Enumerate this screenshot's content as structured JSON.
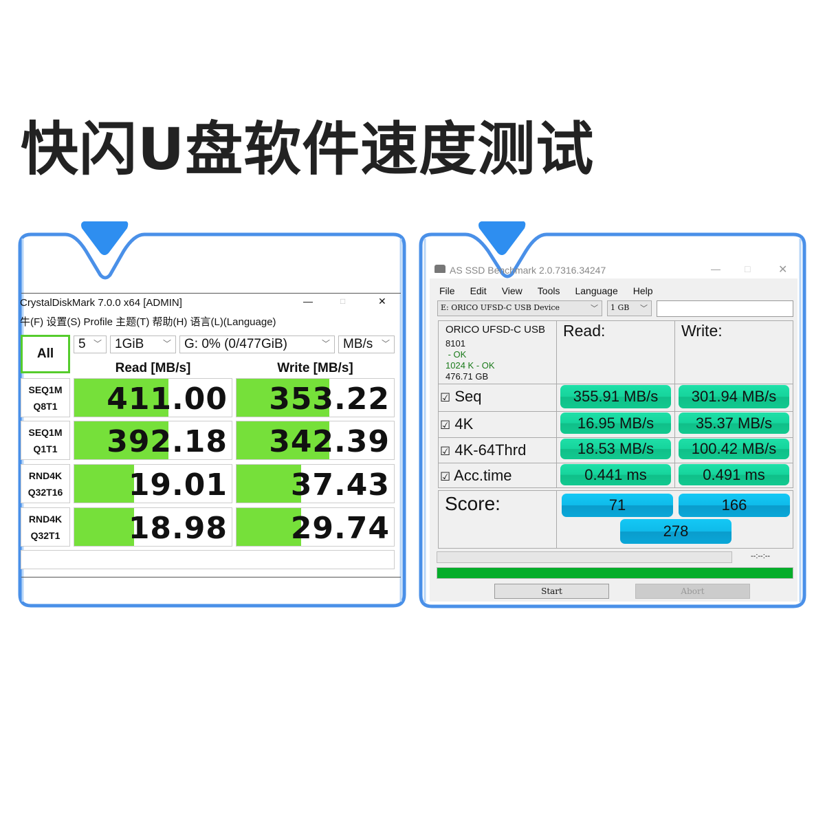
{
  "headline": "快闪U盘软件速度测试",
  "colors": {
    "frame": "#4a90e8",
    "cdm_bar": "#76e03a",
    "as_result": "#16d49c",
    "as_score": "#0fbbea",
    "as_progress": "#05ad2a"
  },
  "cdm": {
    "title": "CrystalDiskMark 7.0.0 x64 [ADMIN]",
    "menu": "牛(F) 设置(S) Profile 主题(T) 帮助(H) 语言(L)(Language)",
    "all_button": "All",
    "count": "5",
    "size": "1GiB",
    "drive": "G: 0% (0/477GiB)",
    "unit": "MB/s",
    "read_header": "Read [MB/s]",
    "write_header": "Write [MB/s]",
    "rows": [
      {
        "l1": "SEQ1M",
        "l2": "Q8T1",
        "read": "411.00",
        "write": "353.22",
        "read_fill": 0.6,
        "write_fill": 0.59
      },
      {
        "l1": "SEQ1M",
        "l2": "Q1T1",
        "read": "392.18",
        "write": "342.39",
        "read_fill": 0.6,
        "write_fill": 0.59
      },
      {
        "l1": "RND4K",
        "l2": "Q32T16",
        "read": "19.01",
        "write": "37.43",
        "read_fill": 0.38,
        "write_fill": 0.41
      },
      {
        "l1": "RND4K",
        "l2": "Q32T1",
        "read": "18.98",
        "write": "29.74",
        "read_fill": 0.38,
        "write_fill": 0.41
      }
    ]
  },
  "asssd": {
    "title": "AS SSD Benchmark 2.0.7316.34247",
    "menu": [
      "File",
      "Edit",
      "View",
      "Tools",
      "Language",
      "Help"
    ],
    "drive": "E: ORICO UFSD-C USB Device",
    "size": "1 GB",
    "info": {
      "name": "ORICO UFSD-C USB",
      "fw": "8101",
      "ok1": " - OK",
      "ok2": "1024 K - OK",
      "capacity": "476.71 GB"
    },
    "read_header": "Read:",
    "write_header": "Write:",
    "rows": [
      {
        "label": "Seq",
        "read": "355.91 MB/s",
        "write": "301.94 MB/s",
        "checked": true
      },
      {
        "label": "4K",
        "read": "16.95 MB/s",
        "write": "35.37 MB/s",
        "checked": true
      },
      {
        "label": "4K-64Thrd",
        "read": "18.53 MB/s",
        "write": "100.42 MB/s",
        "checked": true
      },
      {
        "label": "Acc.time",
        "read": "0.441 ms",
        "write": "0.491 ms",
        "checked": true
      }
    ],
    "score_label": "Score:",
    "score_read": "71",
    "score_write": "166",
    "score_total": "278",
    "time": "--:--:--",
    "progress": 1.0,
    "start": "Start",
    "abort": "Abort"
  }
}
